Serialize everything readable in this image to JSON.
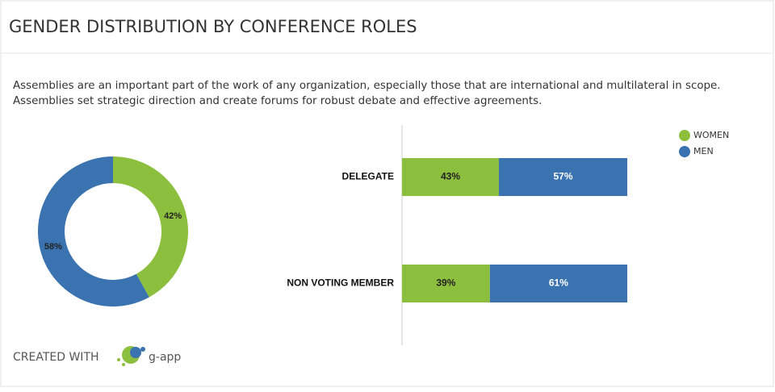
{
  "title": "GENDER DISTRIBUTION BY CONFERENCE ROLES",
  "description": [
    "Assemblies are an important part of the work of any organization, especially those that are international and multilateral in scope.",
    "Assemblies set strategic direction and create forums for robust debate and effective agreements."
  ],
  "footer": {
    "created_with": "CREATED WITH",
    "brand": "g-app"
  },
  "chart_data": [
    {
      "type": "pie",
      "donut": true,
      "values": [
        42,
        58
      ],
      "value_labels": [
        "42%",
        "58%"
      ],
      "colors": [
        "#8dbf3f",
        "#3a73af"
      ]
    },
    {
      "type": "bar",
      "orientation": "horizontal",
      "stacked": true,
      "categories": [
        "DELEGATE",
        "NON VOTING MEMBER"
      ],
      "series": [
        {
          "name": "WOMEN",
          "color": "#8dbf3f",
          "values": [
            43,
            39
          ],
          "value_labels": [
            "43%",
            "39%"
          ]
        },
        {
          "name": "MEN",
          "color": "#3a73af",
          "values": [
            57,
            61
          ],
          "value_labels": [
            "57%",
            "61%"
          ]
        }
      ],
      "xlim": [
        0,
        100
      ],
      "legend": "top-right"
    }
  ]
}
